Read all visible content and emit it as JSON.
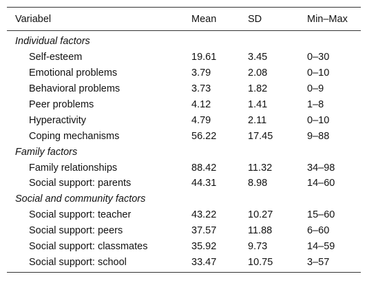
{
  "table": {
    "headers": [
      "Variabel",
      "Mean",
      "SD",
      "Min–Max"
    ],
    "groups": [
      {
        "label": "Individual factors",
        "rows": [
          {
            "variable": "Self-esteem",
            "mean": "19.61",
            "sd": "3.45",
            "range": "0–30"
          },
          {
            "variable": "Emotional problems",
            "mean": "3.79",
            "sd": "2.08",
            "range": "0–10"
          },
          {
            "variable": "Behavioral problems",
            "mean": "3.73",
            "sd": "1.82",
            "range": "0–9"
          },
          {
            "variable": "Peer problems",
            "mean": "4.12",
            "sd": "1.41",
            "range": "1–8"
          },
          {
            "variable": "Hyperactivity",
            "mean": "4.79",
            "sd": "2.11",
            "range": "0–10"
          },
          {
            "variable": "Coping mechanisms",
            "mean": "56.22",
            "sd": "17.45",
            "range": "9–88"
          }
        ]
      },
      {
        "label": "Family factors",
        "rows": [
          {
            "variable": "Family relationships",
            "mean": "88.42",
            "sd": "11.32",
            "range": "34–98"
          },
          {
            "variable": "Social support: parents",
            "mean": "44.31",
            "sd": "8.98",
            "range": "14–60"
          }
        ]
      },
      {
        "label": "Social and community factors",
        "rows": [
          {
            "variable": "Social support: teacher",
            "mean": "43.22",
            "sd": "10.27",
            "range": "15–60"
          },
          {
            "variable": "Social support: peers",
            "mean": "37.57",
            "sd": "11.88",
            "range": "6–60"
          },
          {
            "variable": "Social support: classmates",
            "mean": "35.92",
            "sd": "9.73",
            "range": "14–59"
          },
          {
            "variable": "Social support: school",
            "mean": "33.47",
            "sd": "10.75",
            "range": "3–57"
          }
        ]
      }
    ]
  }
}
